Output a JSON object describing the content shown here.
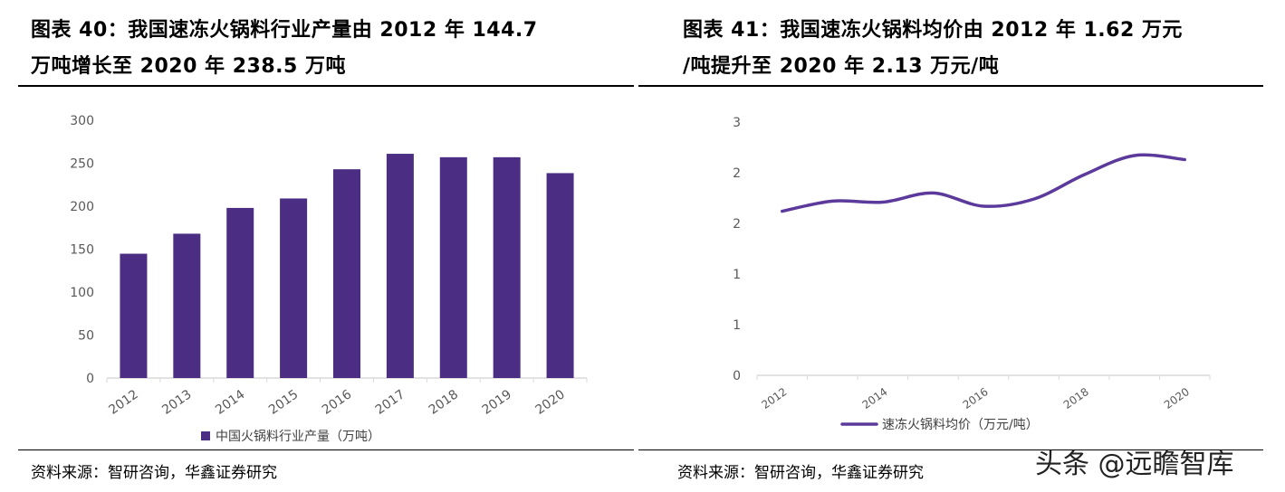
{
  "left": {
    "title_line1": "图表 40：我国速冻火锅料行业产量由 2012 年 144.7",
    "title_line2": "万吨增长至 2020 年 238.5 万吨",
    "source": "资料来源：智研咨询，华鑫证券研究"
  },
  "right": {
    "title_line1": "图表 41：我国速冻火锅料均价由 2012 年 1.62 万元",
    "title_line2": "/吨提升至 2020 年 2.13 万元/吨",
    "source": "资料来源：智研咨询，华鑫证券研究"
  },
  "watermark": "头条 @远瞻智库",
  "colors": {
    "bar": "#4b2d83",
    "line": "#5b3a9b",
    "axis": "#d9d9d9"
  },
  "chart_data": [
    {
      "type": "bar",
      "categories": [
        "2012",
        "2013",
        "2014",
        "2015",
        "2016",
        "2017",
        "2018",
        "2019",
        "2020"
      ],
      "series": [
        {
          "name": "中国火锅料行业产量（万吨）",
          "values": [
            144.7,
            168,
            198,
            209,
            243,
            261,
            257,
            257,
            238.5
          ]
        }
      ],
      "yticks": [
        "0",
        "50",
        "100",
        "150",
        "200",
        "250",
        "300"
      ],
      "ylim": [
        0,
        300
      ],
      "legend": "bottom",
      "grid": false
    },
    {
      "type": "line",
      "categories": [
        "2012",
        "2013",
        "2014",
        "2015",
        "2016",
        "2017",
        "2018",
        "2019",
        "2020"
      ],
      "xticks": [
        "2012",
        "2014",
        "2016",
        "2018",
        "2020"
      ],
      "series": [
        {
          "name": "速冻火锅料均价（万元/吨）",
          "values": [
            1.62,
            1.72,
            1.71,
            1.8,
            1.67,
            1.74,
            1.98,
            2.17,
            2.13
          ]
        }
      ],
      "yticks": [
        "0",
        "1",
        "1",
        "2",
        "2",
        "3"
      ],
      "ylim": [
        0,
        2.5
      ],
      "legend": "bottom",
      "grid": false
    }
  ]
}
